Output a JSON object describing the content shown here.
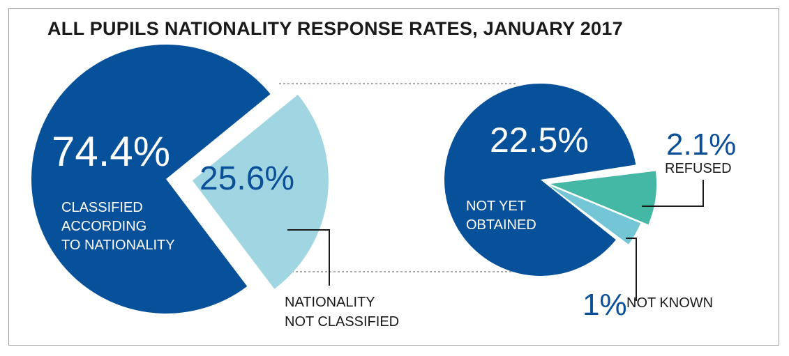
{
  "chart_data": [
    {
      "type": "pie",
      "title": "ALL PUPILS NATIONALITY RESPONSE RATES, JANUARY 2017",
      "slices": [
        {
          "value": 74.4,
          "label": "74.4%",
          "caption": [
            "CLASSIFIED",
            "ACCORDING",
            "TO NATIONALITY"
          ],
          "color": "#07519a"
        },
        {
          "value": 25.6,
          "label": "25.6%",
          "caption": [
            "NATIONALITY",
            "NOT CLASSIFIED"
          ],
          "color": "#a0d6e2"
        }
      ]
    },
    {
      "type": "pie",
      "slices": [
        {
          "value": 22.5,
          "label": "22.5%",
          "caption": [
            "NOT YET",
            "OBTAINED"
          ],
          "color": "#07519a"
        },
        {
          "value": 2.1,
          "label": "2.1%",
          "caption": [
            "REFUSED"
          ],
          "color": "#45b7a5"
        },
        {
          "value": 1,
          "label": "1%",
          "caption": [
            "NOT KNOWN"
          ],
          "color": "#74c6d6"
        }
      ]
    }
  ]
}
